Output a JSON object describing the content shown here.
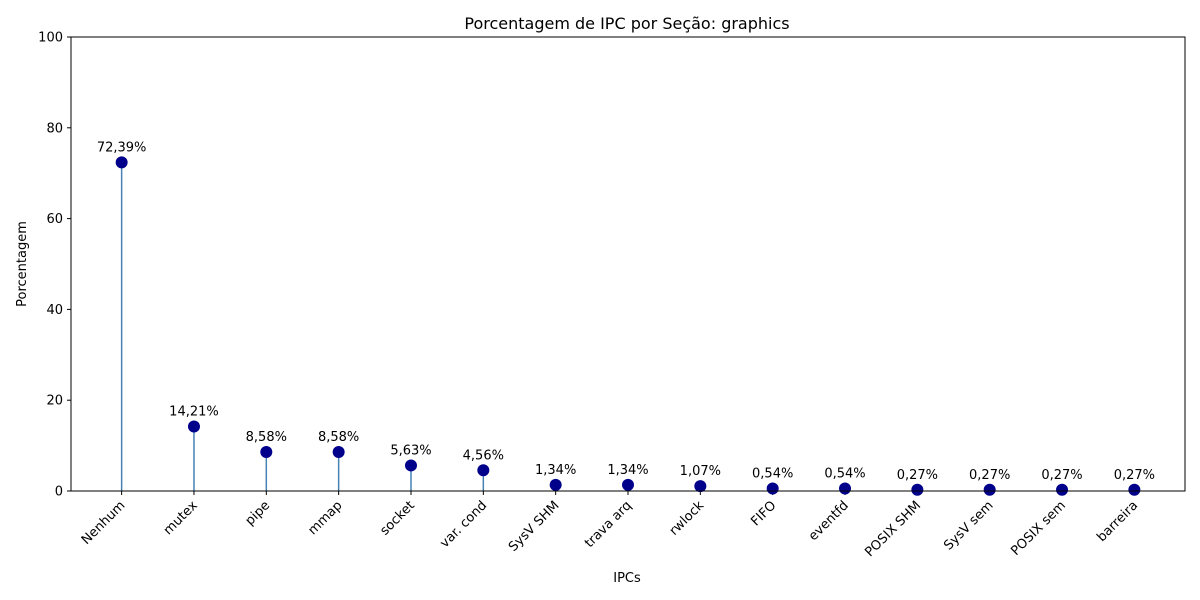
{
  "chart_data": {
    "type": "lollipop",
    "title": "Porcentagem de IPC por Seção: graphics",
    "xlabel": "IPCs",
    "ylabel": "Porcentagem",
    "ylim": [
      0,
      100
    ],
    "yticks": [
      0,
      20,
      40,
      60,
      80,
      100
    ],
    "categories": [
      "Nenhum",
      "mutex",
      "pipe",
      "mmap",
      "socket",
      "var. cond",
      "SysV SHM",
      "trava arq",
      "rwlock",
      "FIFO",
      "eventfd",
      "POSIX SHM",
      "SysV sem",
      "POSIX sem",
      "barreira"
    ],
    "values": [
      72.39,
      14.21,
      8.58,
      8.58,
      5.63,
      4.56,
      1.34,
      1.34,
      1.07,
      0.54,
      0.54,
      0.27,
      0.27,
      0.27,
      0.27
    ],
    "data_labels": [
      "72,39%",
      "14,21%",
      "8,58%",
      "8,58%",
      "5,63%",
      "4,56%",
      "1,34%",
      "1,34%",
      "1,07%",
      "0,54%",
      "0,54%",
      "0,27%",
      "0,27%",
      "0,27%",
      "0,27%"
    ],
    "grid": false,
    "colors": {
      "marker": "#00008b",
      "stem": "#4682b4",
      "axis": "#000000"
    }
  }
}
